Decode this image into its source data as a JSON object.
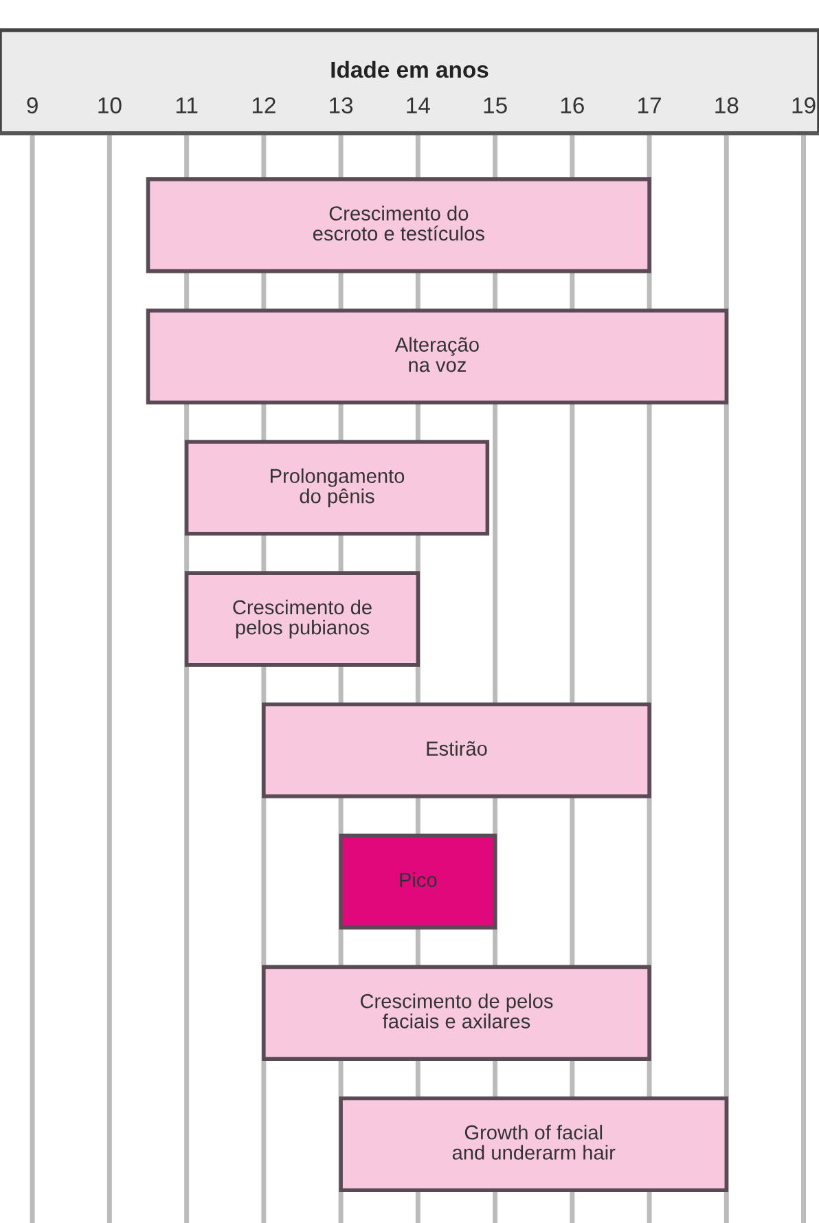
{
  "chart_data": {
    "type": "bar",
    "orientation": "horizontal",
    "xlabel": "Idade em anos",
    "categories": [
      null,
      null,
      null,
      null,
      null,
      null,
      null,
      null
    ],
    "annotations": [
      "Crescimento do\nescroto e testículos",
      "Alteração\nna voz",
      "Prolongamento\ndo pênis",
      "Crescimento de\npelos pubianos",
      "Estirão",
      "Pico",
      "Crescimento de pelos\nfaciais e axilares",
      "Growth of facial\nand underarm hair"
    ],
    "base": [
      10.5,
      10.5,
      11,
      11,
      12,
      13,
      12,
      13
    ],
    "values": [
      6.5,
      7.5,
      3.9,
      3,
      5,
      2,
      5,
      5
    ],
    "colors": [
      "#f7c8de",
      "#f7c8de",
      "#f7c8de",
      "#f7c8de",
      "#f7c8de",
      "#e0087a",
      "#f7c8de",
      "#f7c8de"
    ],
    "xlim": [
      8.58,
      19.2
    ],
    "xticks": [
      9,
      10,
      11,
      12,
      13,
      14,
      15,
      16,
      17,
      18,
      19
    ],
    "grid": "x"
  }
}
